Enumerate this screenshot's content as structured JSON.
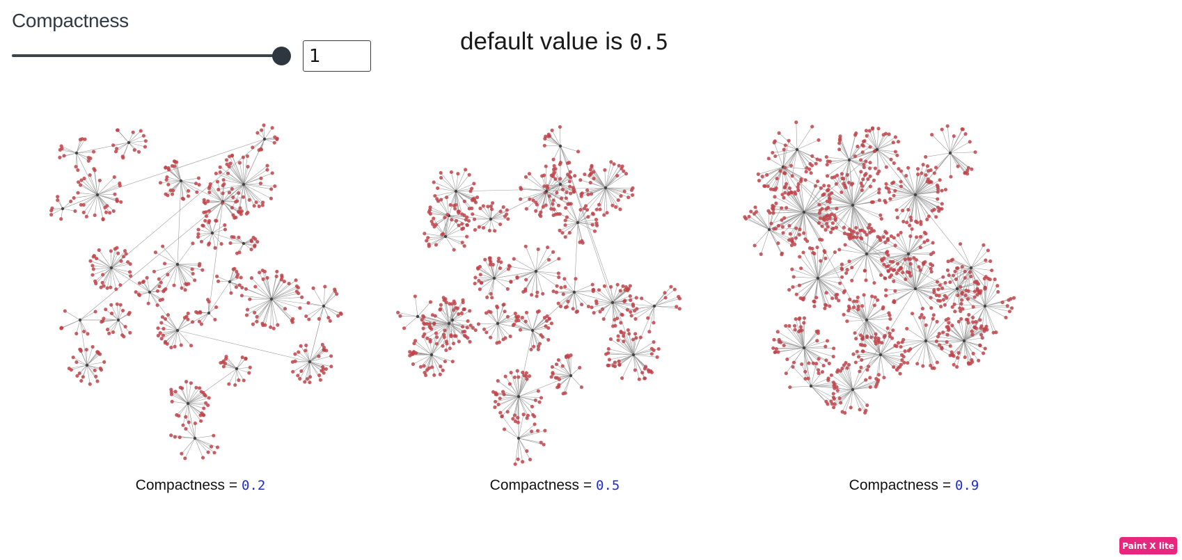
{
  "control": {
    "label": "Compactness",
    "slider_value": 1,
    "input_value": "1"
  },
  "note": {
    "prefix": "default value is ",
    "code": "0.5"
  },
  "panels": [
    {
      "caption_prefix": "Compactness = ",
      "caption_code": "0.2",
      "compactness": 0.2
    },
    {
      "caption_prefix": "Compactness = ",
      "caption_code": "0.5",
      "compactness": 0.5
    },
    {
      "caption_prefix": "Compactness = ",
      "caption_code": "0.9",
      "compactness": 0.9
    }
  ],
  "colors": {
    "node": "#c0444a",
    "edge": "#7a7a7a",
    "hub": "#444444",
    "caption_code": "#1f2bd1",
    "badge": "#e6277d"
  },
  "badge": {
    "label": "Paint X lite"
  }
}
